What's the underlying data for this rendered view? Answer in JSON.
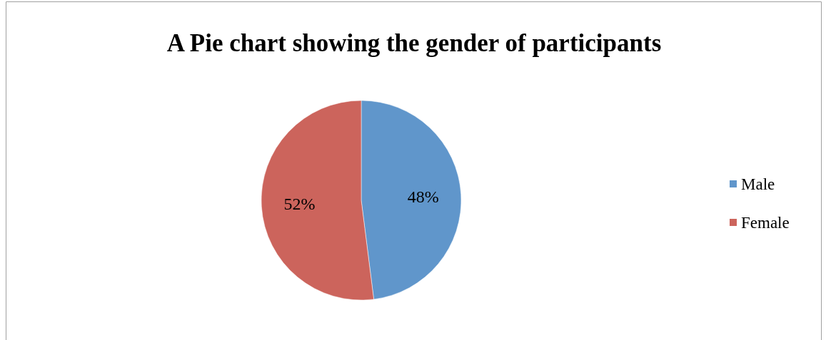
{
  "chart_data": {
    "type": "pie",
    "title": "A Pie chart showing the gender of participants",
    "categories": [
      "Male",
      "Female"
    ],
    "values": [
      48,
      52
    ],
    "colors": [
      "#6096cb",
      "#cc645c"
    ],
    "value_labels": [
      "48%",
      "52%"
    ],
    "legend": "right"
  }
}
